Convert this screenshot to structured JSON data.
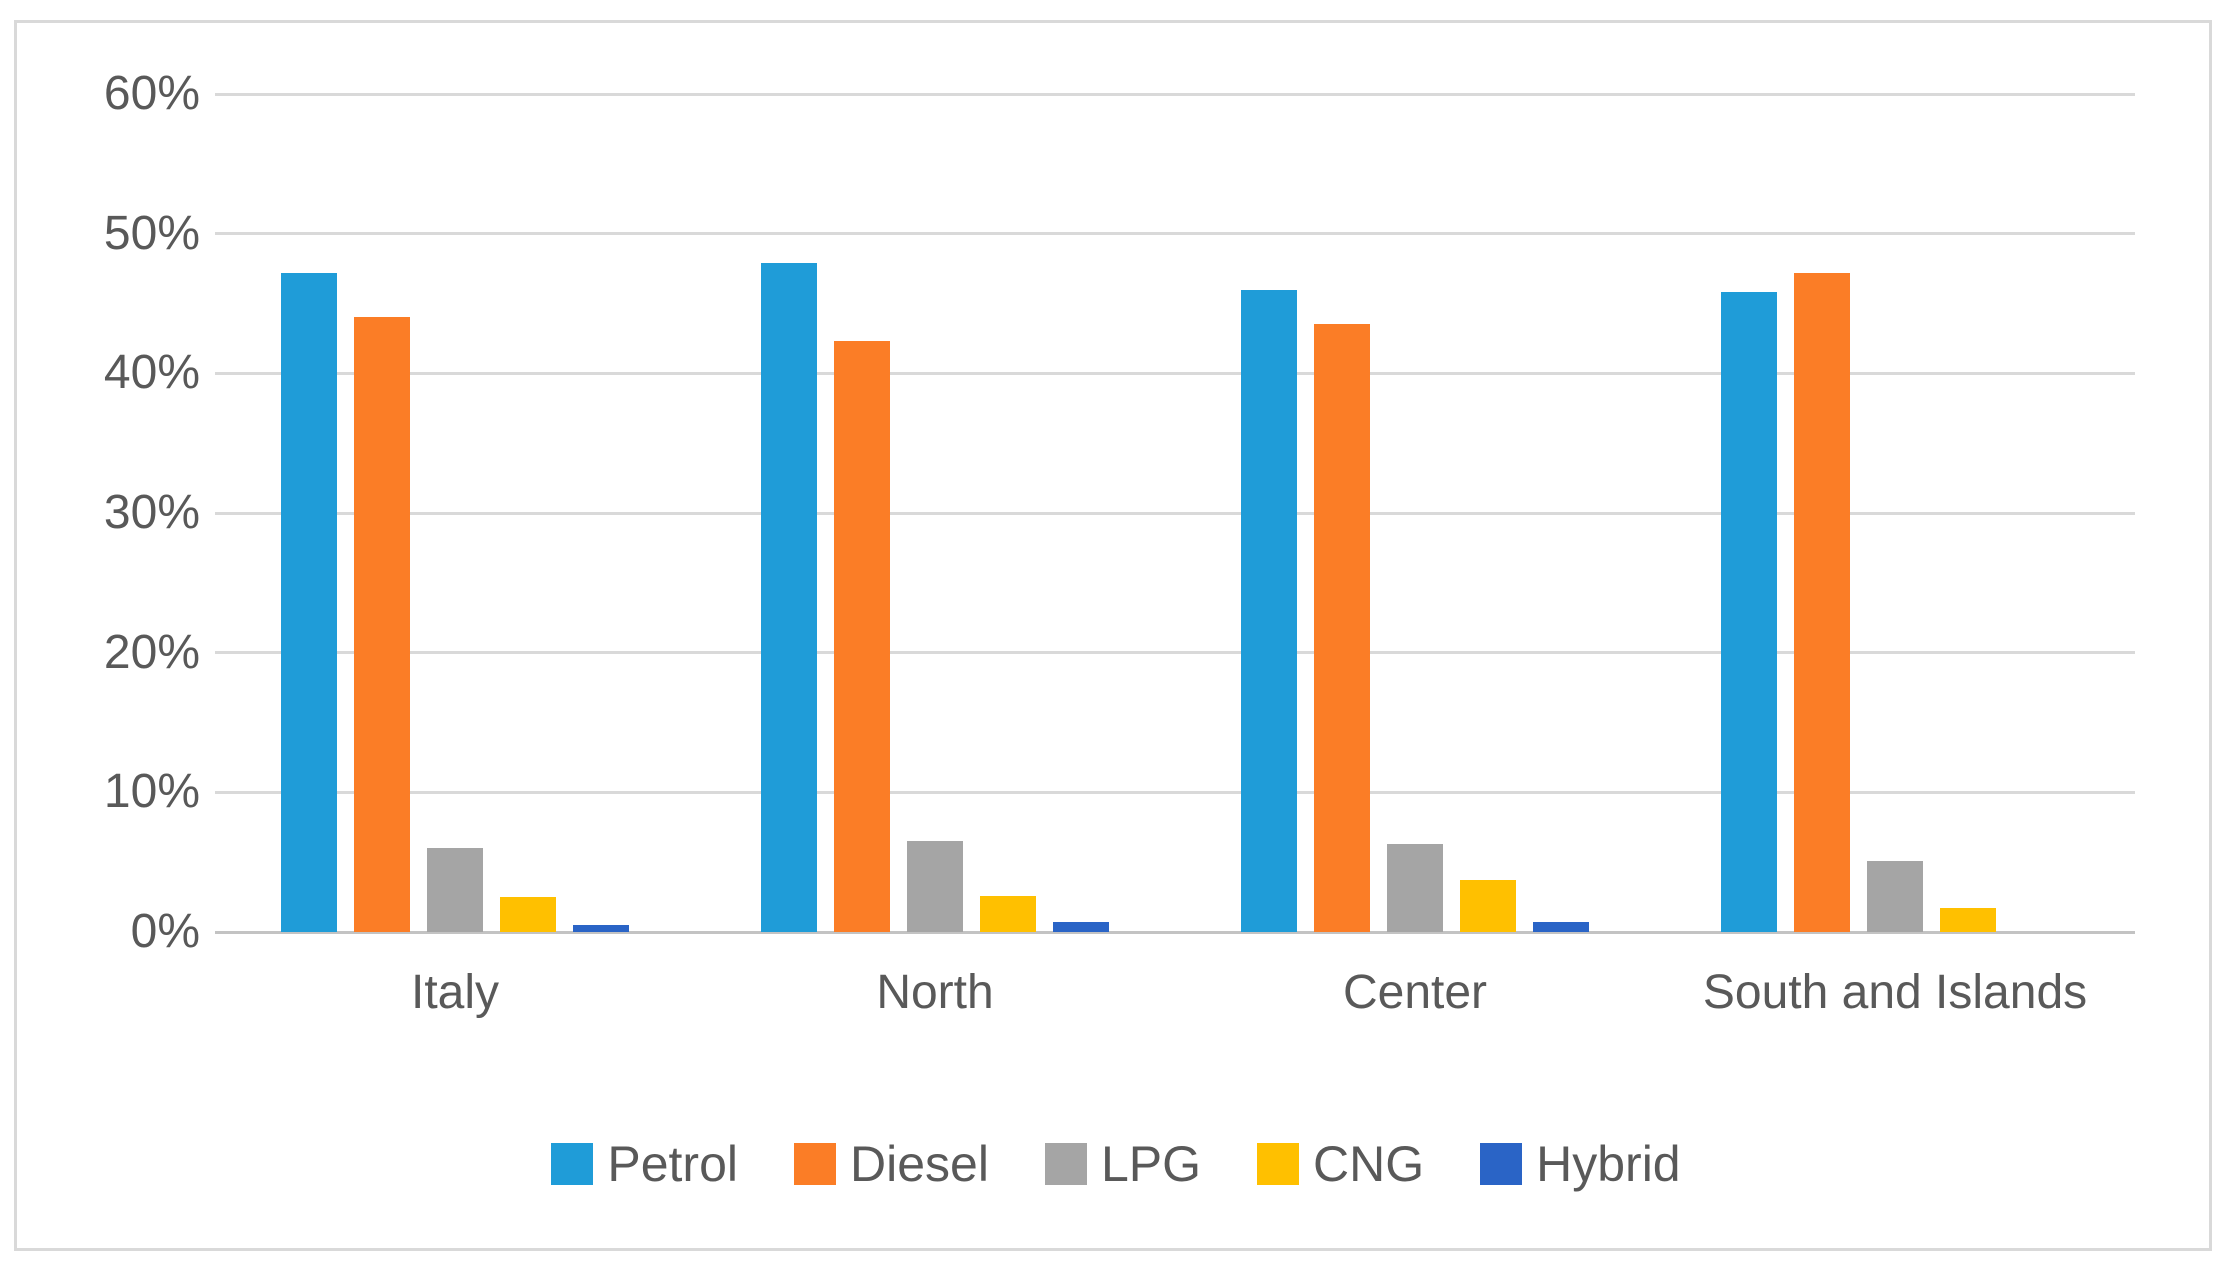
{
  "chart_data": {
    "type": "bar",
    "title": "",
    "categories": [
      "Italy",
      "North",
      "Center",
      "South and Islands"
    ],
    "series": [
      {
        "name": "Petrol",
        "color": "#1f9cd8",
        "values": [
          47.2,
          47.9,
          46.0,
          45.8
        ]
      },
      {
        "name": "Diesel",
        "color": "#fb7d26",
        "values": [
          44.0,
          42.3,
          43.5,
          47.2
        ]
      },
      {
        "name": "LPG",
        "color": "#a5a5a5",
        "values": [
          6.0,
          6.5,
          6.3,
          5.1
        ]
      },
      {
        "name": "CNG",
        "color": "#ffc000",
        "values": [
          2.5,
          2.6,
          3.7,
          1.7
        ]
      },
      {
        "name": "Hybrid",
        "color": "#2a64c6",
        "values": [
          0.5,
          0.7,
          0.7,
          0.0
        ]
      }
    ],
    "xlabel": "",
    "ylabel": "",
    "ylim": [
      0,
      60
    ],
    "ytick_step": 10,
    "ytick_labels": [
      "0%",
      "10%",
      "20%",
      "30%",
      "40%",
      "50%",
      "60%"
    ],
    "grid": true,
    "legend_position": "bottom"
  },
  "styles": {
    "background": "#ffffff",
    "frame_border": "#d9d9d9",
    "gridline": "#d9d9d9",
    "baseline": "#c3c3c3",
    "text": "#595959"
  }
}
